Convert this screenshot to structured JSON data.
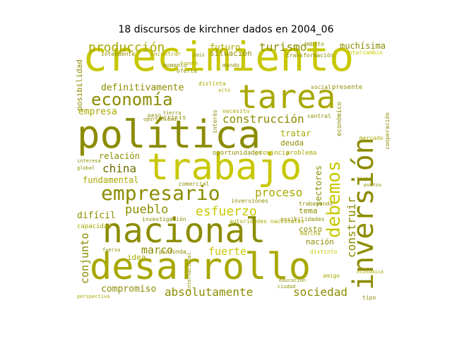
{
  "title": "18 discursos de kirchner dados en 2004_06",
  "colors": [
    "#c8c800",
    "#a8a800",
    "#8c8c00",
    "#6e6e00"
  ],
  "words": [
    {
      "t": "crecimiento",
      "c": "#c8c800"
    },
    {
      "t": "tarea",
      "c": "#a8a800"
    },
    {
      "t": "política",
      "c": "#8c8c00"
    },
    {
      "t": "trabajo",
      "c": "#c8c800"
    },
    {
      "t": "nacional",
      "c": "#8c8c00"
    },
    {
      "t": "desarrollo",
      "c": "#a8a800"
    },
    {
      "t": "inversión",
      "c": "#8c8c00"
    },
    {
      "t": "empresario",
      "c": "#8c8c00"
    },
    {
      "t": "debemos",
      "c": "#c8c800"
    },
    {
      "t": "economía",
      "c": "#8c8c00"
    },
    {
      "t": "producción",
      "c": "#a8a800"
    },
    {
      "t": "turismo",
      "c": "#8c8c00"
    },
    {
      "t": "construcción",
      "c": "#8c8c00"
    },
    {
      "t": "china",
      "c": "#6e6e00"
    },
    {
      "t": "esfuerzo",
      "c": "#c8c800"
    },
    {
      "t": "pueblo",
      "c": "#8c8c00"
    },
    {
      "t": "proceso",
      "c": "#a8a800"
    },
    {
      "t": "construir",
      "c": "#8c8c00"
    },
    {
      "t": "conjunto",
      "c": "#8c8c00"
    },
    {
      "t": "absolutamente",
      "c": "#8c8c00"
    },
    {
      "t": "sociedad",
      "c": "#8c8c00"
    },
    {
      "t": "marco",
      "c": "#8c8c00"
    },
    {
      "t": "fuerte",
      "c": "#c8c800"
    },
    {
      "t": "compromiso",
      "c": "#8c8c00"
    },
    {
      "t": "definitivamente",
      "c": "#8c8c00"
    },
    {
      "t": "empresa",
      "c": "#a8a800"
    },
    {
      "t": "difícil",
      "c": "#8c8c00"
    },
    {
      "t": "fundamental",
      "c": "#a8a800"
    },
    {
      "t": "relación",
      "c": "#8c8c00"
    },
    {
      "t": "posibilidad",
      "c": "#8c8c00"
    },
    {
      "t": "sectores",
      "c": "#8c8c00"
    },
    {
      "t": "muchísima",
      "c": "#8c8c00"
    },
    {
      "t": "futuro",
      "c": "#a8a800"
    },
    {
      "t": "situación",
      "c": "#8c8c00"
    },
    {
      "t": "tratar",
      "c": "#a8a800"
    },
    {
      "t": "deuda",
      "c": "#8c8c00"
    },
    {
      "t": "tema",
      "c": "#8c8c00"
    },
    {
      "t": "costo",
      "c": "#8c8c00"
    },
    {
      "t": "nación",
      "c": "#8c8c00"
    },
    {
      "t": "idea",
      "c": "#a8a800"
    },
    {
      "t": "presente",
      "c": "#8c8c00"
    },
    {
      "t": "económico",
      "c": "#8c8c00"
    },
    {
      "t": "capacidad",
      "c": "#a8a800"
    },
    {
      "t": "oportunidades",
      "c": "#8c8c00"
    },
    {
      "t": "provincia",
      "c": "#a8a800"
    },
    {
      "t": "problema",
      "c": "#a8a800"
    },
    {
      "t": "intendente",
      "c": "#8c8c00"
    },
    {
      "t": "transformación",
      "c": "#8c8c00"
    },
    {
      "t": "momento",
      "c": "#8c8c00"
    },
    {
      "t": "mundo",
      "c": "#8c8c00"
    },
    {
      "t": "distinta",
      "c": "#a8a800"
    },
    {
      "t": "crisis",
      "c": "#8c8c00"
    },
    {
      "t": "interés",
      "c": "#8c8c00"
    },
    {
      "t": "central",
      "c": "#8c8c00"
    },
    {
      "t": "social",
      "c": "#8c8c00"
    },
    {
      "t": "peso",
      "c": "#8c8c00"
    },
    {
      "t": "oferta",
      "c": "#8c8c00"
    },
    {
      "t": "necesito",
      "c": "#a8a800"
    },
    {
      "t": "cooperación",
      "c": "#8c8c00"
    },
    {
      "t": "mercado",
      "c": "#a8a800"
    },
    {
      "t": "intercambio",
      "c": "#c8c800"
    },
    {
      "t": "inversiones",
      "c": "#8c8c00"
    },
    {
      "t": "trabajando",
      "c": "#8c8c00"
    },
    {
      "t": "posibilidades",
      "c": "#8c8c00"
    },
    {
      "t": "investigación",
      "c": "#8c8c00"
    },
    {
      "t": "autoridades nacionales",
      "c": "#a8a800"
    },
    {
      "t": "marcha",
      "c": "#a8a800"
    },
    {
      "t": "distinto",
      "c": "#c8c800"
    },
    {
      "t": "amigo",
      "c": "#a8a800"
    },
    {
      "t": "comercial",
      "c": "#8c8c00"
    },
    {
      "t": "profunda",
      "c": "#8c8c00"
    },
    {
      "t": "internacional",
      "c": "#8c8c00"
    },
    {
      "t": "perspectiva",
      "c": "#a8a800"
    },
    {
      "t": "economica",
      "c": "#a8a800"
    },
    {
      "t": "tipo",
      "c": "#8c8c00"
    },
    {
      "t": "interesa",
      "c": "#8c8c00"
    },
    {
      "t": "global",
      "c": "#8c8c00"
    },
    {
      "t": "oportunidad",
      "c": "#8c8c00"
    },
    {
      "t": "encontrar",
      "c": "#a8a800"
    },
    {
      "t": "país",
      "c": "#8c8c00"
    },
    {
      "t": "tierra",
      "c": "#8c8c00"
    },
    {
      "t": "fuerza",
      "c": "#8c8c00"
    },
    {
      "t": "ciudad",
      "c": "#8c8c00"
    },
    {
      "t": "educación",
      "c": "#8c8c00"
    },
    {
      "t": "frente",
      "c": "#a8a800"
    },
    {
      "t": "alto",
      "c": "#a8a800"
    },
    {
      "t": "ámbito",
      "c": "#8c8c00"
    },
    {
      "t": "puntos",
      "c": "#8c8c00"
    },
    {
      "t": "tiene",
      "c": "#8c8c00"
    }
  ]
}
